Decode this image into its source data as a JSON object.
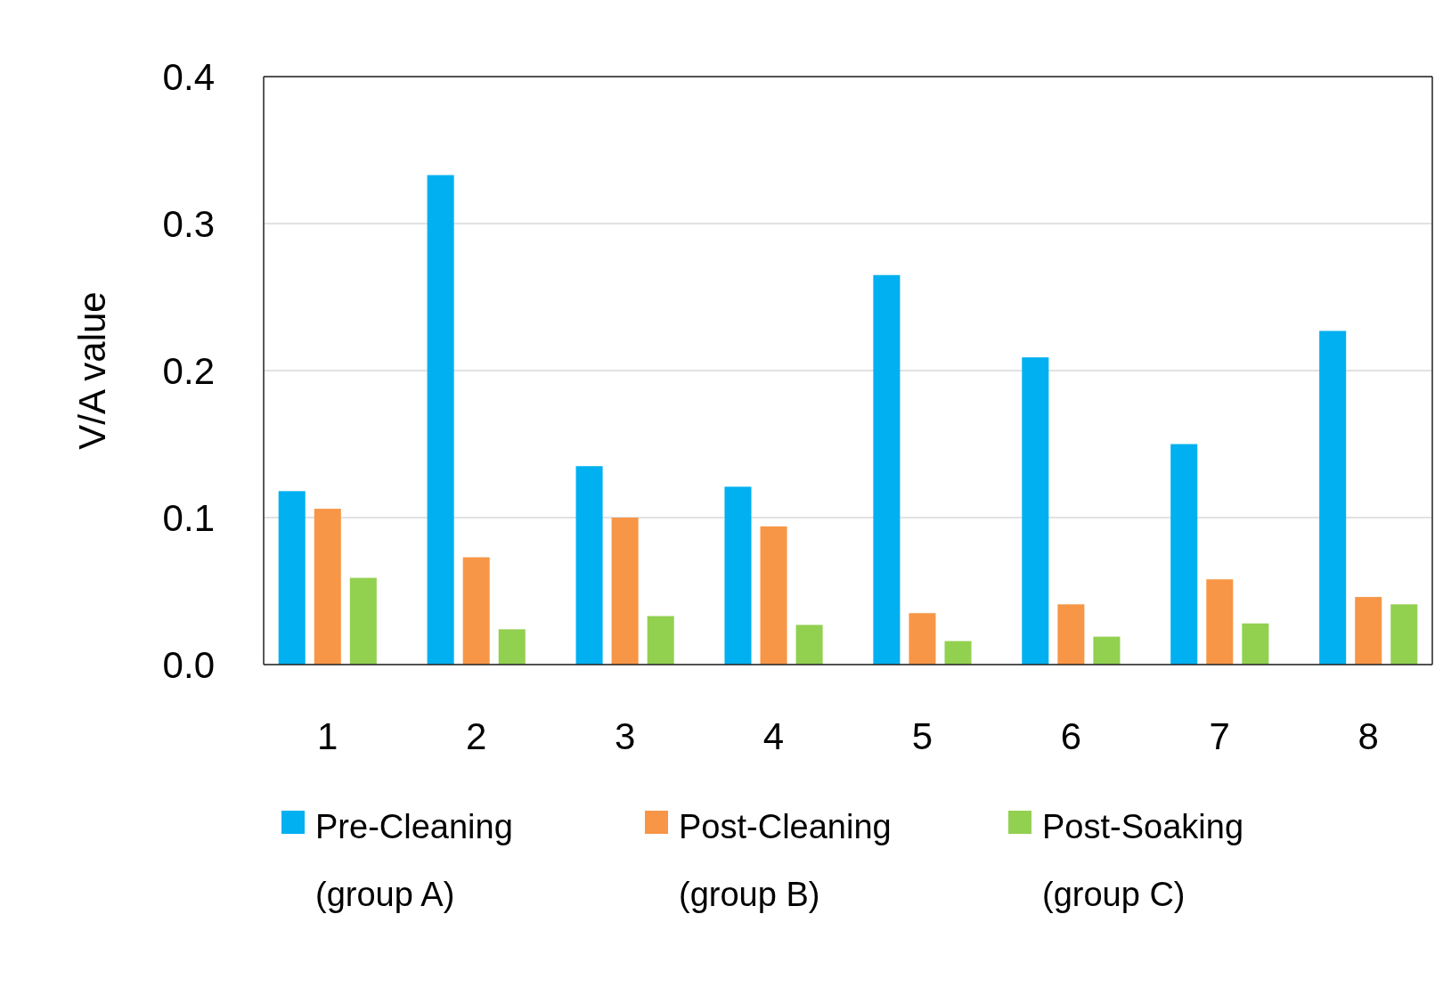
{
  "chart_data": {
    "type": "bar",
    "ylabel": "V/A value",
    "categories": [
      "1",
      "2",
      "3",
      "4",
      "5",
      "6",
      "7",
      "8"
    ],
    "series": [
      {
        "name": "Pre-Cleaning (group A)",
        "color": "#00b0f0",
        "values": [
          0.118,
          0.333,
          0.135,
          0.121,
          0.265,
          0.209,
          0.15,
          0.227
        ]
      },
      {
        "name": "Post-Cleaning (group B)",
        "color": "#f79646",
        "values": [
          0.106,
          0.073,
          0.1,
          0.094,
          0.035,
          0.041,
          0.058,
          0.046
        ]
      },
      {
        "name": "Post-Soaking (group C)",
        "color": "#92d050",
        "values": [
          0.059,
          0.024,
          0.033,
          0.027,
          0.016,
          0.019,
          0.028,
          0.041
        ]
      }
    ],
    "ylim": [
      0,
      0.4
    ],
    "yticks": [
      {
        "value": 0,
        "label": "0.0"
      },
      {
        "value": 0.1,
        "label": "0.1"
      },
      {
        "value": 0.2,
        "label": "0.2"
      },
      {
        "value": 0.3,
        "label": "0.3"
      },
      {
        "value": 0.4,
        "label": "0.4"
      }
    ],
    "grid": true,
    "legend": "bottom"
  }
}
